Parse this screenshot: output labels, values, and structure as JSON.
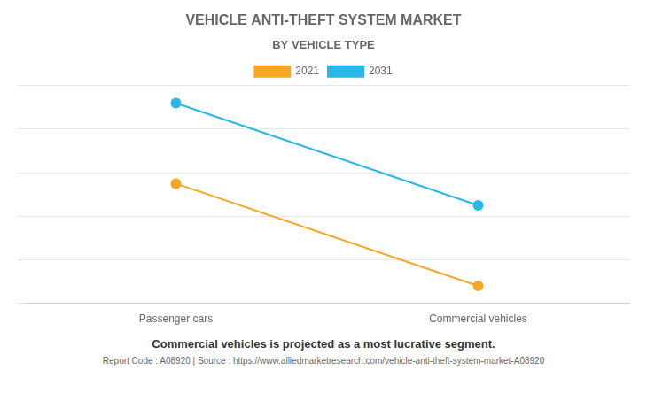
{
  "chart_data": {
    "type": "line",
    "title": "VEHICLE ANTI-THEFT SYSTEM MARKET",
    "subtitle": "BY VEHICLE TYPE",
    "categories": [
      "Passenger cars",
      "Commercial vehicles"
    ],
    "series": [
      {
        "name": "2021",
        "color": "#F5A623",
        "values": [
          0.55,
          0.08
        ]
      },
      {
        "name": "2031",
        "color": "#29B6E8",
        "values": [
          0.92,
          0.45
        ]
      }
    ],
    "ylim": [
      0.0,
      1.0
    ],
    "yticks": [
      0,
      0.2,
      0.4,
      0.6,
      0.8,
      1.0
    ],
    "grid": true,
    "legend": "top",
    "tick_labels": "x",
    "marker": "circle",
    "annotations": [
      "Commercial vehicles is projected as a most lucrative segment.",
      "Report Code : A08920  |  Source : https://www.alliedmarketresearch.com/vehicle-anti-theft-system-market-A08920"
    ]
  }
}
